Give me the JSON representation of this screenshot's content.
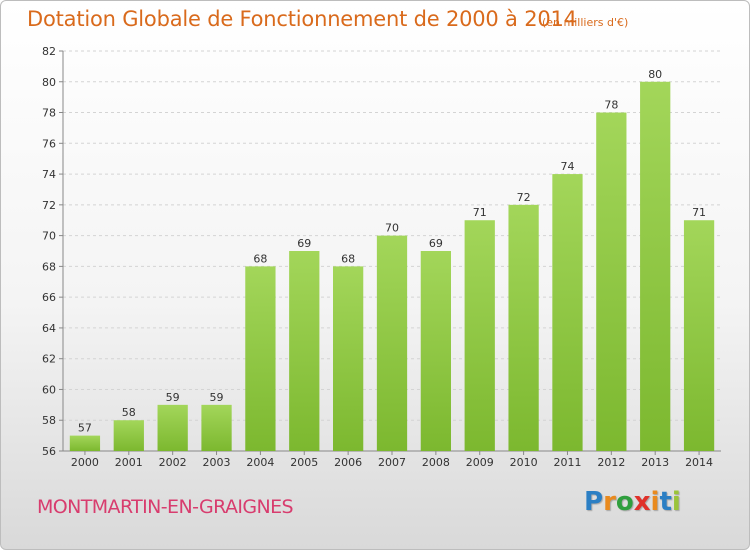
{
  "chart_data": {
    "type": "bar",
    "title": "Dotation Globale de Fonctionnement de 2000 à 2014",
    "subtitle": "(en milliers d'€)",
    "categories": [
      "2000",
      "2001",
      "2002",
      "2003",
      "2004",
      "2005",
      "2006",
      "2007",
      "2008",
      "2009",
      "2010",
      "2011",
      "2012",
      "2013",
      "2014"
    ],
    "values": [
      57,
      58,
      59,
      59,
      68,
      69,
      68,
      70,
      69,
      71,
      72,
      74,
      78,
      80,
      71
    ],
    "ylim": [
      56,
      82
    ],
    "yticks": [
      "56",
      "58",
      "60",
      "62",
      "64",
      "66",
      "68",
      "70",
      "72",
      "74",
      "76",
      "78",
      "80",
      "82"
    ],
    "grid": true,
    "bar_color": "#7cb82f",
    "bar_color_light": "#a3d65a"
  },
  "footer": {
    "commune": "MONTMARTIN-EN-GRAIGNES",
    "brand_letters": [
      "P",
      "r",
      "o",
      "x",
      "i",
      "t",
      "i"
    ],
    "brand_colors": [
      "#2b7fc4",
      "#e98a1e",
      "#2f9f3e",
      "#e0312a",
      "#e98a1e",
      "#2b7fc4",
      "#9bc43a"
    ]
  }
}
